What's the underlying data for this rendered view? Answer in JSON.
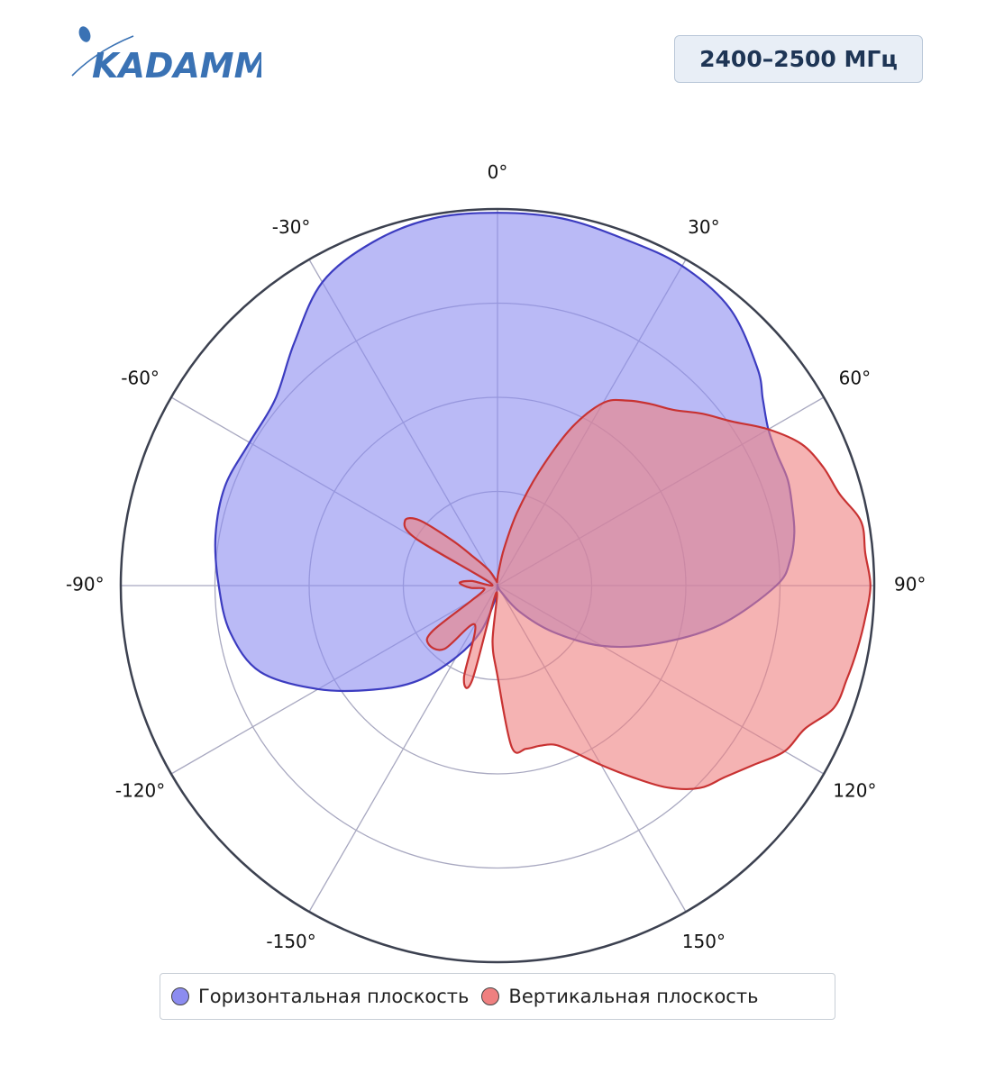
{
  "header": {
    "logo_text": "KADAMM",
    "band_label": "2400–2500 МГц"
  },
  "colors": {
    "horizontal_fill": "#8c8cf0",
    "horizontal_line": "#3c3cc0",
    "vertical_fill": "#ef8080",
    "vertical_line": "#c83232",
    "grid": "#a8a8c0",
    "outer_ring": "#3c4150",
    "brand": "#3a72b4"
  },
  "legend": {
    "items": [
      {
        "label": "Горизонтальная плоскость",
        "color": "#8c8cf0"
      },
      {
        "label": "Вертикальная плоскость",
        "color": "#ef8080"
      }
    ]
  },
  "chart_data": {
    "type": "polar-area",
    "angular_unit": "degrees",
    "zero_direction": "top",
    "direction": "clockwise",
    "angular_ticks": [
      "0°",
      "30°",
      "60°",
      "90°",
      "120°",
      "150°",
      "-150°",
      "-120°",
      "-90°",
      "-60°",
      "-30°"
    ],
    "tick_angles": [
      0,
      30,
      60,
      90,
      120,
      150,
      -150,
      -120,
      -90,
      -60,
      -30
    ],
    "radial_rings": [
      0.25,
      0.5,
      0.75,
      1.0
    ],
    "radial_max": 1.0,
    "series": [
      {
        "name": "Горизонтальная плоскость",
        "theta": [
          0,
          10,
          20,
          30,
          40,
          50,
          55,
          60,
          65,
          70,
          75,
          80,
          85,
          90,
          100,
          110,
          120,
          130,
          140,
          150,
          160,
          170,
          180,
          -170,
          -160,
          -150,
          -140,
          -130,
          -120,
          -110,
          -100,
          -90,
          -80,
          -70,
          -60,
          -50,
          -40,
          -30,
          -20,
          -10
        ],
        "r": [
          0.99,
          0.99,
          0.98,
          0.98,
          0.96,
          0.9,
          0.86,
          0.83,
          0.82,
          0.82,
          0.81,
          0.8,
          0.78,
          0.74,
          0.6,
          0.45,
          0.32,
          0.19,
          0.09,
          0.02,
          0.0,
          0.0,
          0.0,
          0.04,
          0.13,
          0.22,
          0.33,
          0.43,
          0.55,
          0.67,
          0.72,
          0.74,
          0.76,
          0.77,
          0.76,
          0.77,
          0.84,
          0.93,
          0.97,
          0.99
        ]
      },
      {
        "name": "Вертикальная плоскость",
        "theta": [
          0,
          5,
          10,
          15,
          20,
          25,
          30,
          35,
          40,
          45,
          50,
          55,
          60,
          65,
          70,
          75,
          80,
          85,
          90,
          95,
          100,
          105,
          110,
          115,
          120,
          125,
          130,
          135,
          140,
          145,
          150,
          155,
          160,
          165,
          170,
          175,
          180,
          -175,
          -170,
          -165,
          -160,
          -150,
          -140,
          -130,
          -125,
          -120,
          -110,
          -100,
          -95,
          -90,
          -85,
          -80,
          -70,
          -60,
          -55,
          -50,
          -45,
          -40,
          -30,
          -20,
          -10,
          -5
        ],
        "r": [
          0.02,
          0.04,
          0.1,
          0.2,
          0.32,
          0.46,
          0.56,
          0.6,
          0.63,
          0.66,
          0.71,
          0.76,
          0.83,
          0.89,
          0.92,
          0.94,
          0.98,
          0.98,
          0.99,
          0.98,
          0.97,
          0.96,
          0.95,
          0.9,
          0.88,
          0.83,
          0.79,
          0.76,
          0.7,
          0.62,
          0.55,
          0.49,
          0.45,
          0.44,
          0.44,
          0.43,
          0.24,
          0.15,
          0.02,
          0.26,
          0.26,
          0.12,
          0.22,
          0.24,
          0.21,
          0.08,
          0.04,
          0.04,
          0.07,
          0.09,
          0.1,
          0.07,
          0.02,
          0.25,
          0.3,
          0.27,
          0.17,
          0.1,
          0.05,
          0.02,
          0.01,
          0.01
        ]
      }
    ]
  }
}
